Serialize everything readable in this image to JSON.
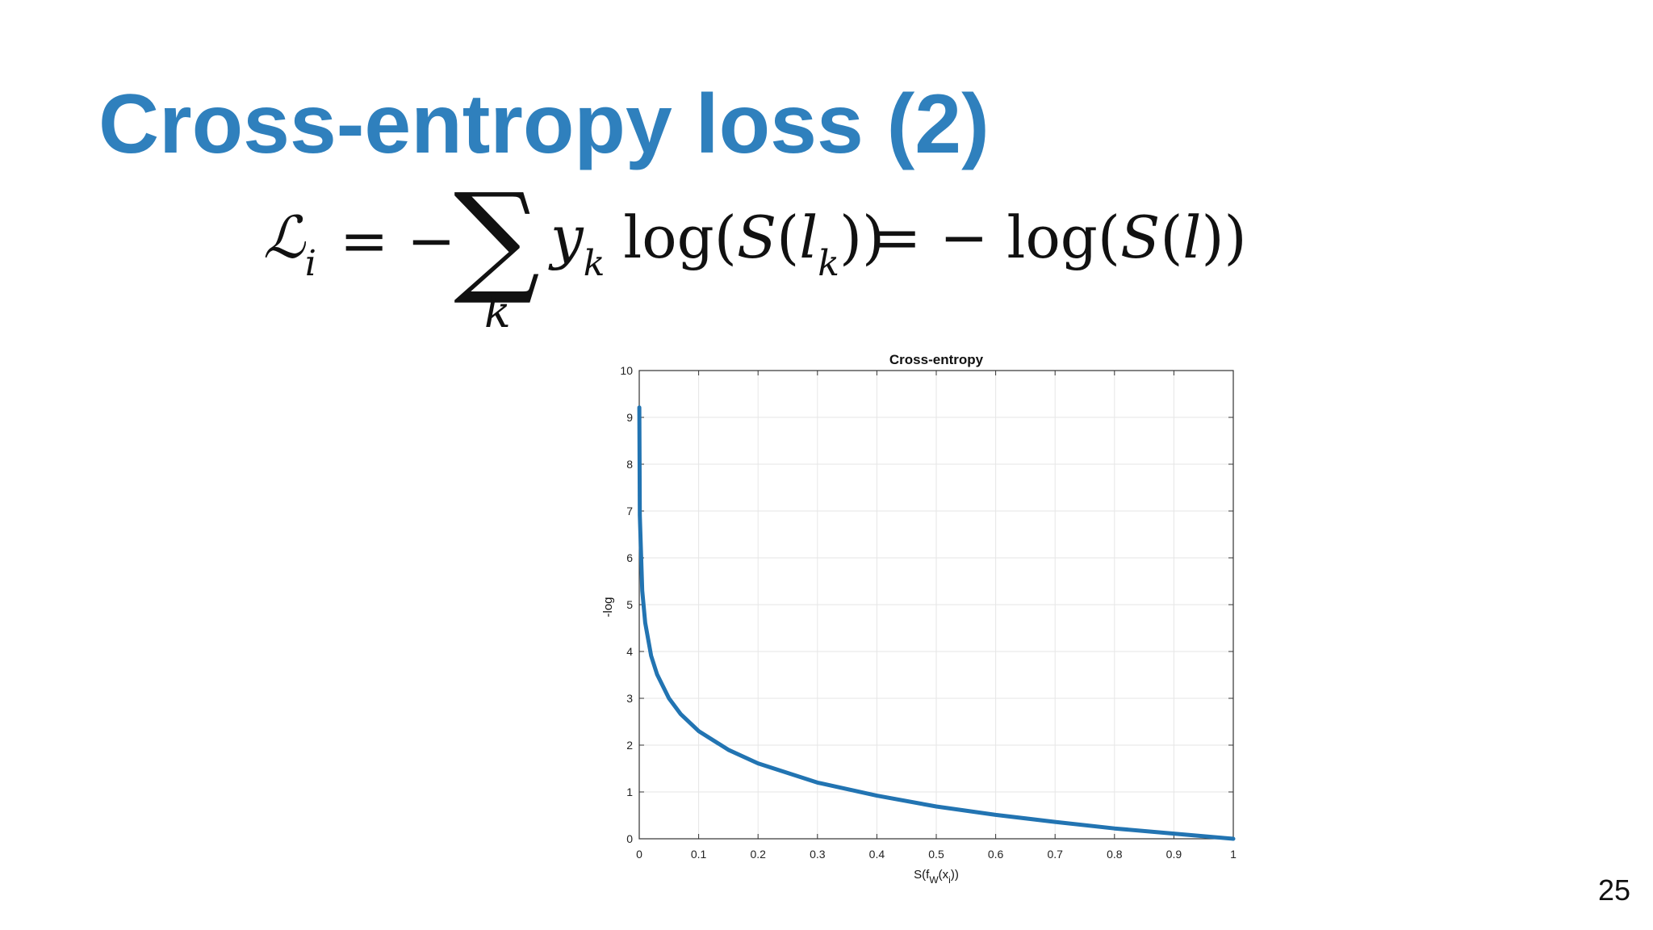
{
  "slide": {
    "title": "Cross-entropy loss (2)",
    "page_number": "25",
    "title_color": "#2f80bd"
  },
  "equation": {
    "lhs_symbol": "ℒ",
    "lhs_sub": "i",
    "eq1": "= −",
    "sum": "∑",
    "sum_index": "k",
    "y": "y",
    "y_sub": "k",
    "log1_open": "log(",
    "S1": "S",
    "paren1": "(",
    "l1": "l",
    "l1_sub": "k",
    "close1": "))",
    "eq2": "= − log(",
    "S2": "S",
    "paren2": "(",
    "l2": "l",
    "close2": "))"
  },
  "chart_data": {
    "type": "line",
    "title": "Cross-entropy",
    "xlabel": "S(f_W(x_i))",
    "xlabel_parts": {
      "a": "S(f",
      "b": "W",
      "c": "(x",
      "d": "i",
      "e": "))"
    },
    "ylabel": "-log",
    "xlim": [
      0,
      1
    ],
    "ylim": [
      0,
      10
    ],
    "xticks": [
      0,
      0.1,
      0.2,
      0.3,
      0.4,
      0.5,
      0.6,
      0.7,
      0.8,
      0.9,
      1
    ],
    "yticks": [
      0,
      1,
      2,
      3,
      4,
      5,
      6,
      7,
      8,
      9,
      10
    ],
    "grid": true,
    "line_color": "#2274b2",
    "series": [
      {
        "function": "-log(x)",
        "x": [
          0.0001,
          0.001,
          0.005,
          0.01,
          0.02,
          0.03,
          0.05,
          0.07,
          0.1,
          0.15,
          0.2,
          0.3,
          0.4,
          0.5,
          0.6,
          0.7,
          0.8,
          0.9,
          1.0
        ],
        "y": [
          9.21,
          6.91,
          5.3,
          4.61,
          3.91,
          3.51,
          3.0,
          2.66,
          2.3,
          1.9,
          1.61,
          1.2,
          0.92,
          0.69,
          0.51,
          0.36,
          0.22,
          0.11,
          0.0
        ]
      }
    ]
  }
}
